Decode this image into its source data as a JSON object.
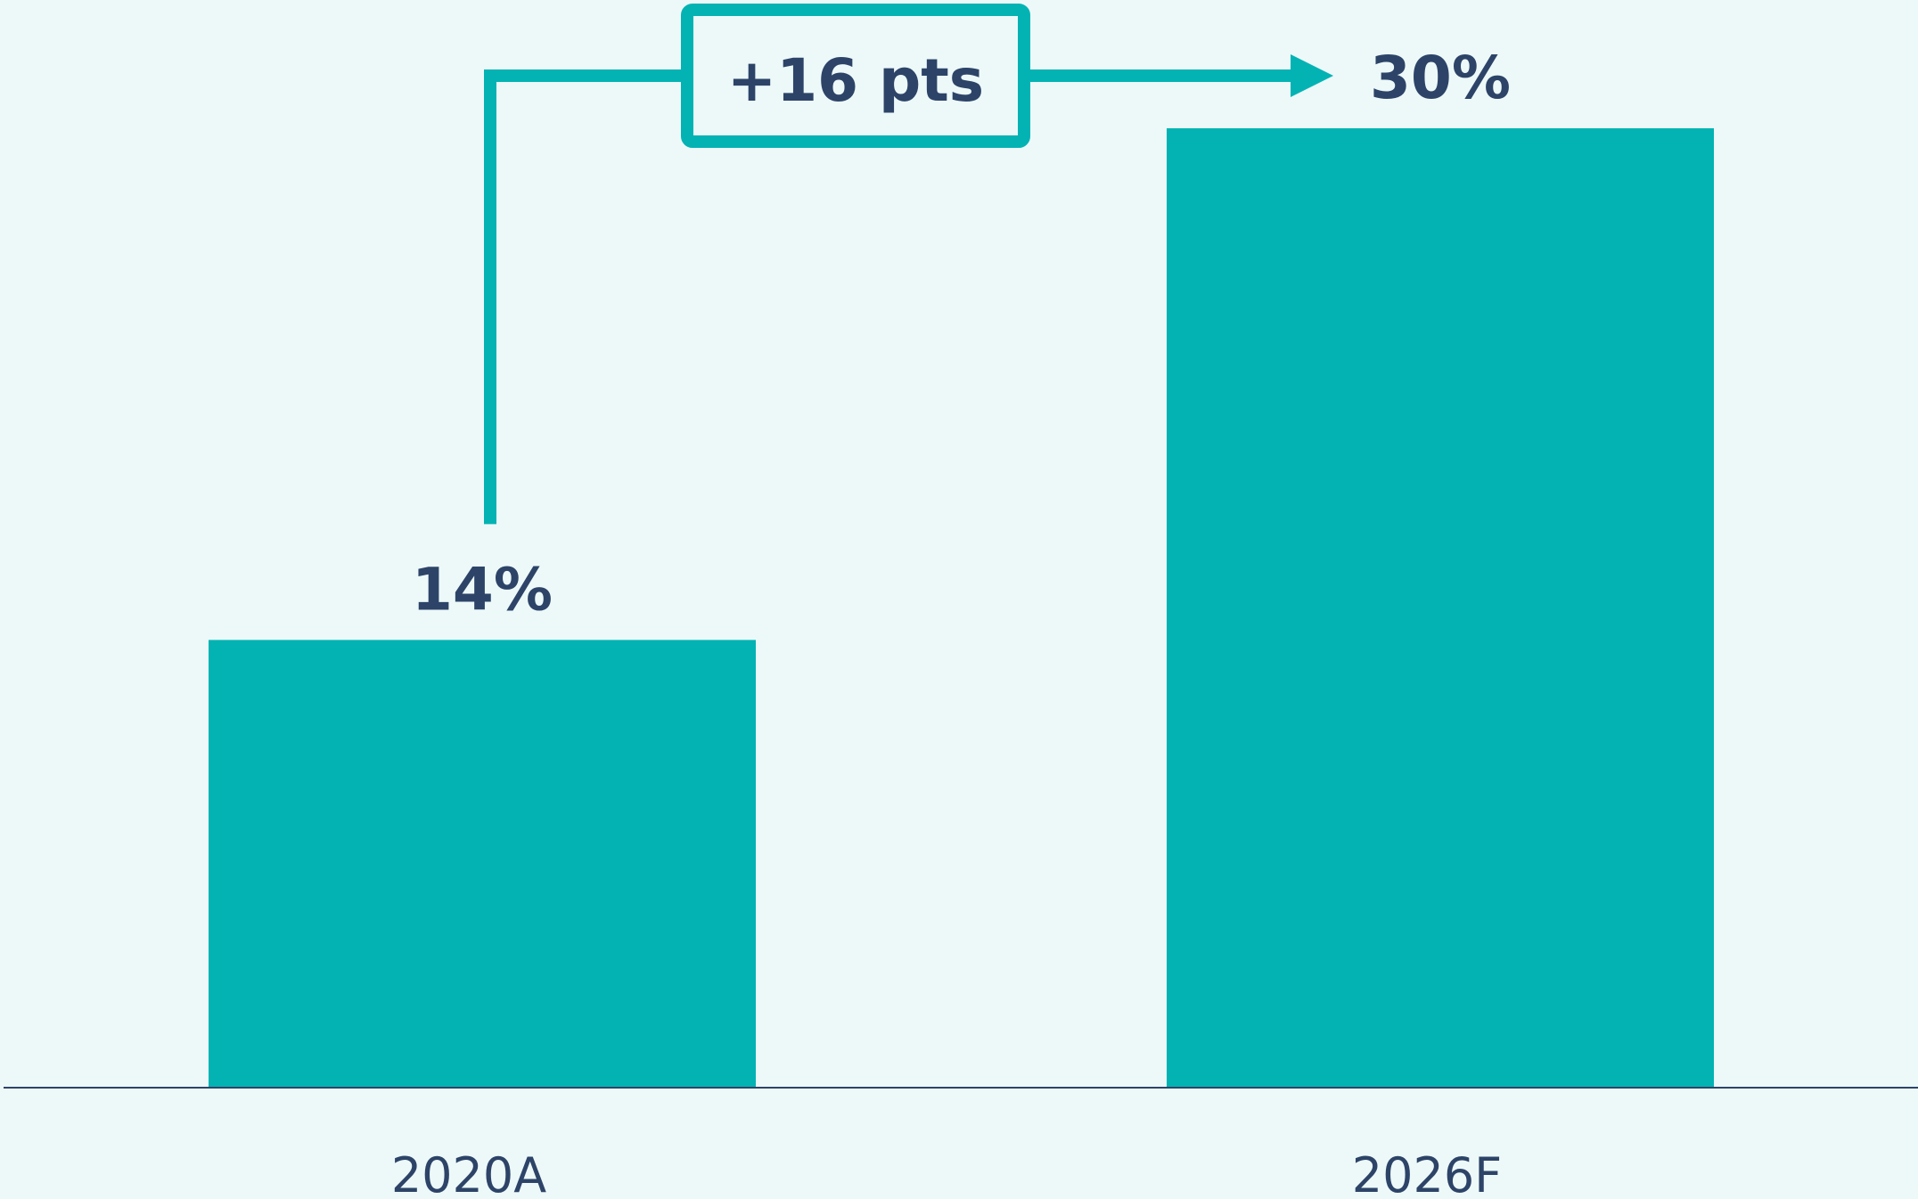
{
  "chart_data": {
    "type": "bar",
    "categories": [
      "2020A",
      "2026F"
    ],
    "values": [
      14,
      30
    ],
    "value_labels": [
      "14%",
      "30%"
    ],
    "annotation": "+16 pts",
    "color": "#03b3b4"
  }
}
